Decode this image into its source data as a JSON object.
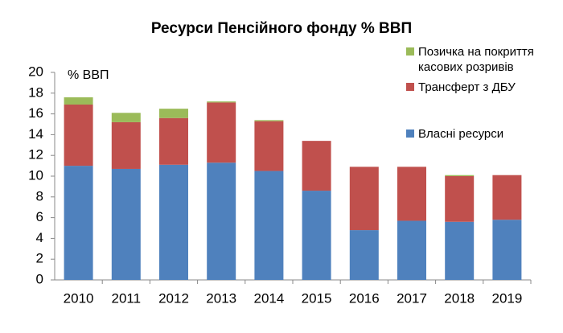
{
  "chart_data": {
    "type": "stacked-bar",
    "title": "Ресурси Пенсійного фонду % ВВП",
    "y_label": "% ВВП",
    "categories": [
      "2010",
      "2011",
      "2012",
      "2013",
      "2014",
      "2015",
      "2016",
      "2017",
      "2018",
      "2019"
    ],
    "series": [
      {
        "name": "Власні ресурси",
        "color": "#4f81bd",
        "values": [
          11.0,
          10.7,
          11.1,
          11.3,
          10.5,
          8.6,
          4.8,
          5.7,
          5.6,
          5.8
        ]
      },
      {
        "name": "Трансферт з ДБУ",
        "color": "#c0504d",
        "values": [
          5.9,
          4.5,
          4.5,
          5.8,
          4.8,
          4.8,
          6.1,
          5.2,
          4.4,
          4.3
        ]
      },
      {
        "name": "Позичка на покриття касових розривів",
        "color": "#9bbb59",
        "values": [
          0.7,
          0.9,
          0.9,
          0.1,
          0.1,
          0,
          0,
          0,
          0.1,
          0
        ]
      }
    ],
    "ylim": [
      0,
      20
    ],
    "yticks": [
      0,
      2,
      4,
      6,
      8,
      10,
      12,
      14,
      16,
      18,
      20
    ],
    "grid": false,
    "legend": "right"
  }
}
